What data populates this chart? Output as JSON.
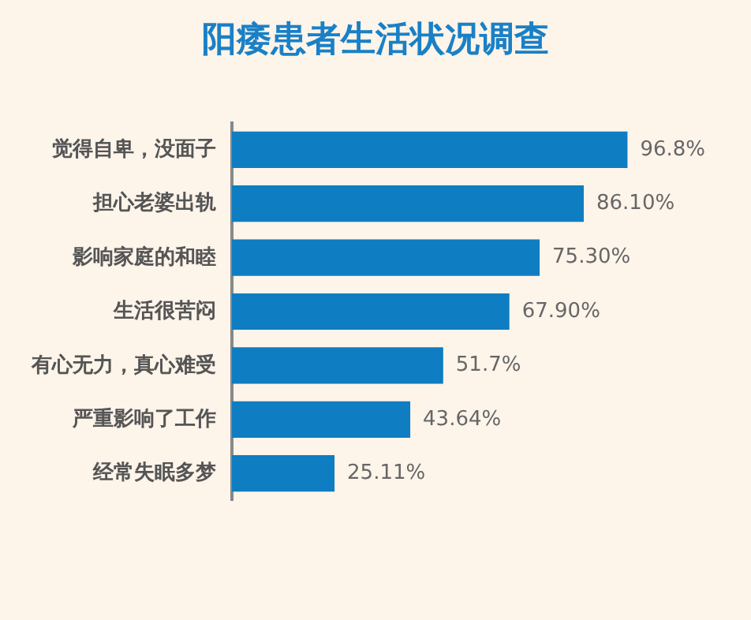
{
  "chart_data": {
    "type": "bar",
    "orientation": "horizontal",
    "title": "阳痿患者生活状况调查",
    "categories": [
      "觉得自卑，没面子",
      "担心老婆出轨",
      "影响家庭的和睦",
      "生活很苦闷",
      "有心无力，真心难受",
      "严重影响了工作",
      "经常失眠多梦"
    ],
    "values": [
      96.8,
      86.1,
      75.3,
      67.9,
      51.7,
      43.64,
      25.11
    ],
    "value_labels": [
      "96.8%",
      "86.10%",
      "75.30%",
      "67.90%",
      "51.7%",
      "43.64%",
      "25.11%"
    ],
    "color": "#0f7dc2",
    "legend": false,
    "tick_labels": "y"
  }
}
